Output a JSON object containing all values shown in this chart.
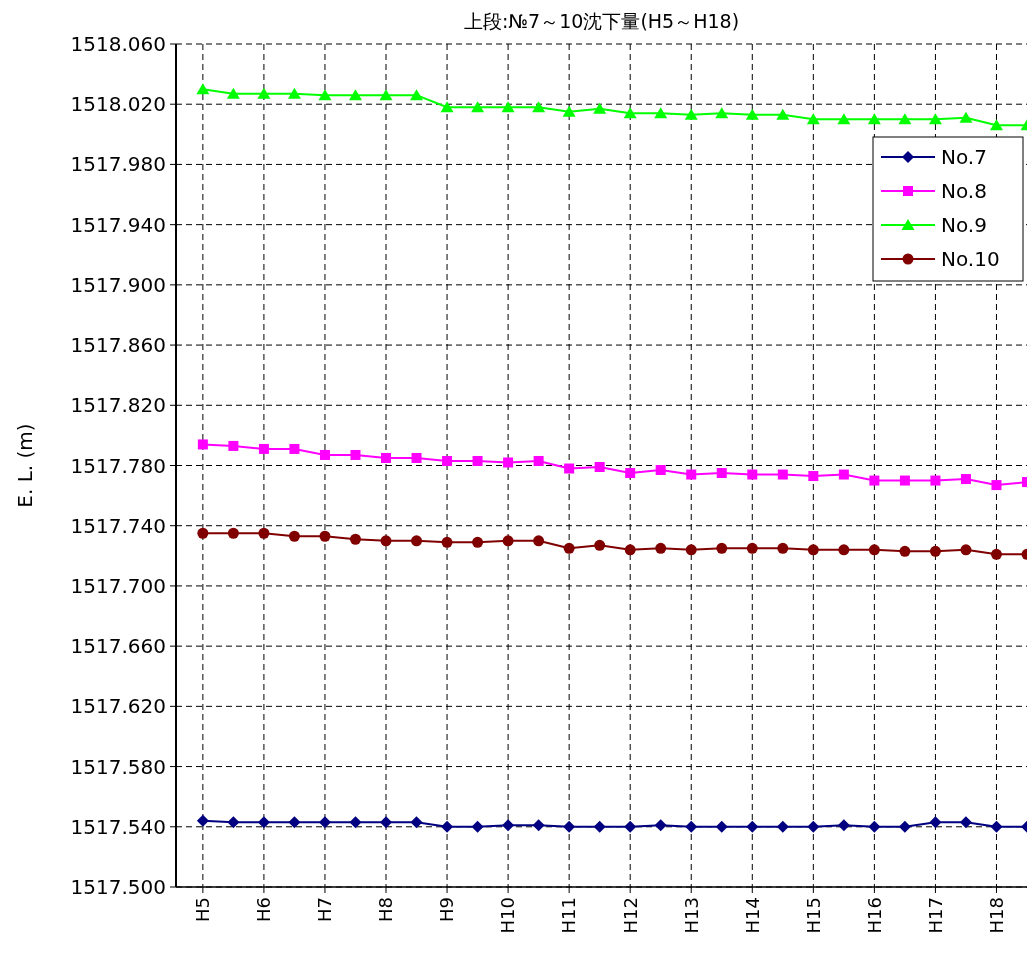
{
  "chart_data": {
    "type": "line",
    "title": "上段:№7～10沈下量(H5～H18)",
    "ylabel": "E. L. (m)",
    "categories": [
      "H5",
      null,
      "H6",
      null,
      "H7",
      null,
      "H8",
      null,
      "H9",
      null,
      "H10",
      null,
      "H11",
      null,
      "H12",
      null,
      "H13",
      null,
      "H14",
      null,
      "H15",
      null,
      "H16",
      null,
      "H17",
      null,
      "H18",
      null
    ],
    "ylim": [
      1517.5,
      1518.06
    ],
    "yticks": [
      {
        "value": 1517.5,
        "label": "1517.500"
      },
      {
        "value": 1517.54,
        "label": "1517.540"
      },
      {
        "value": 1517.58,
        "label": "1517.580"
      },
      {
        "value": 1517.62,
        "label": "1517.620"
      },
      {
        "value": 1517.66,
        "label": "1517.660"
      },
      {
        "value": 1517.7,
        "label": "1517.700"
      },
      {
        "value": 1517.74,
        "label": "1517.740"
      },
      {
        "value": 1517.78,
        "label": "1517.780"
      },
      {
        "value": 1517.82,
        "label": "1517.820"
      },
      {
        "value": 1517.86,
        "label": "1517.860"
      },
      {
        "value": 1517.9,
        "label": "1517.900"
      },
      {
        "value": 1517.94,
        "label": "1517.940"
      },
      {
        "value": 1517.98,
        "label": "1517.980"
      },
      {
        "value": 1518.02,
        "label": "1518.020"
      },
      {
        "value": 1518.06,
        "label": "1518.060"
      }
    ],
    "grid": true,
    "legend": "top right",
    "line_style": "solid",
    "series": [
      {
        "name": "No.7",
        "color": "#000080",
        "marker": "diamond",
        "values": [
          1517.544,
          1517.543,
          1517.543,
          1517.543,
          1517.543,
          1517.543,
          1517.543,
          1517.543,
          1517.54,
          1517.54,
          1517.541,
          1517.541,
          1517.54,
          1517.54,
          1517.54,
          1517.541,
          1517.54,
          1517.54,
          1517.54,
          1517.54,
          1517.54,
          1517.541,
          1517.54,
          1517.54,
          1517.543,
          1517.543,
          1517.54,
          1517.54
        ]
      },
      {
        "name": "No.8",
        "color": "#ff00ff",
        "marker": "square",
        "values": [
          1517.794,
          1517.793,
          1517.791,
          1517.791,
          1517.787,
          1517.787,
          1517.785,
          1517.785,
          1517.783,
          1517.783,
          1517.782,
          1517.783,
          1517.778,
          1517.779,
          1517.775,
          1517.777,
          1517.774,
          1517.775,
          1517.774,
          1517.774,
          1517.773,
          1517.774,
          1517.77,
          1517.77,
          1517.77,
          1517.771,
          1517.767,
          1517.769
        ]
      },
      {
        "name": "No.9",
        "color": "#00ff00",
        "marker": "triangle",
        "values": [
          1518.03,
          1518.027,
          1518.027,
          1518.027,
          1518.026,
          1518.026,
          1518.026,
          1518.026,
          1518.018,
          1518.018,
          1518.018,
          1518.018,
          1518.015,
          1518.017,
          1518.014,
          1518.014,
          1518.013,
          1518.014,
          1518.013,
          1518.013,
          1518.01,
          1518.01,
          1518.01,
          1518.01,
          1518.01,
          1518.011,
          1518.006,
          1518.006
        ]
      },
      {
        "name": "No.10",
        "color": "#800000",
        "marker": "circle",
        "values": [
          1517.735,
          1517.735,
          1517.735,
          1517.733,
          1517.733,
          1517.731,
          1517.73,
          1517.73,
          1517.729,
          1517.729,
          1517.73,
          1517.73,
          1517.725,
          1517.727,
          1517.724,
          1517.725,
          1517.724,
          1517.725,
          1517.725,
          1517.725,
          1517.724,
          1517.724,
          1517.724,
          1517.723,
          1517.723,
          1517.724,
          1517.721,
          1517.721
        ]
      }
    ]
  }
}
